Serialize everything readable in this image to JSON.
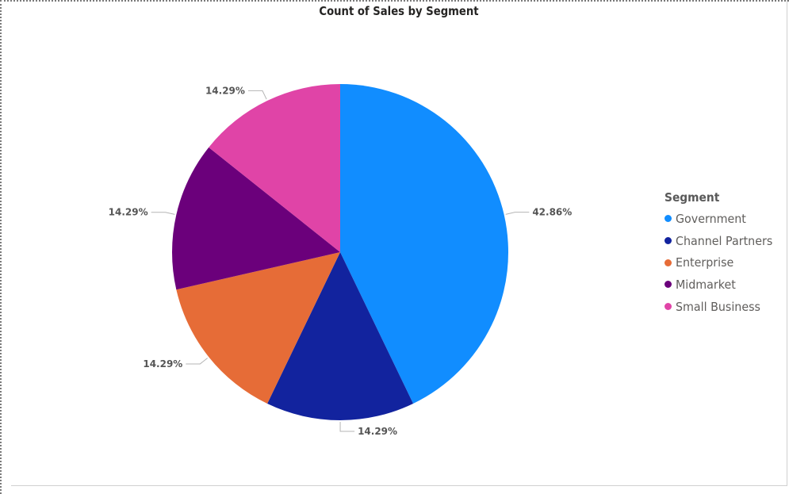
{
  "chart_data": {
    "type": "pie",
    "title": "Count of Sales by Segment",
    "legend_title": "Segment",
    "legend_position": "right",
    "categories": [
      "Government",
      "Channel Partners",
      "Enterprise",
      "Midmarket",
      "Small Business"
    ],
    "values": [
      42.86,
      14.29,
      14.29,
      14.29,
      14.29
    ],
    "labels": [
      "42.86%",
      "14.29%",
      "14.29%",
      "14.29%",
      "14.29%"
    ],
    "colors": [
      "#118dff",
      "#12239e",
      "#e66c37",
      "#6b007b",
      "#e044a7"
    ]
  }
}
